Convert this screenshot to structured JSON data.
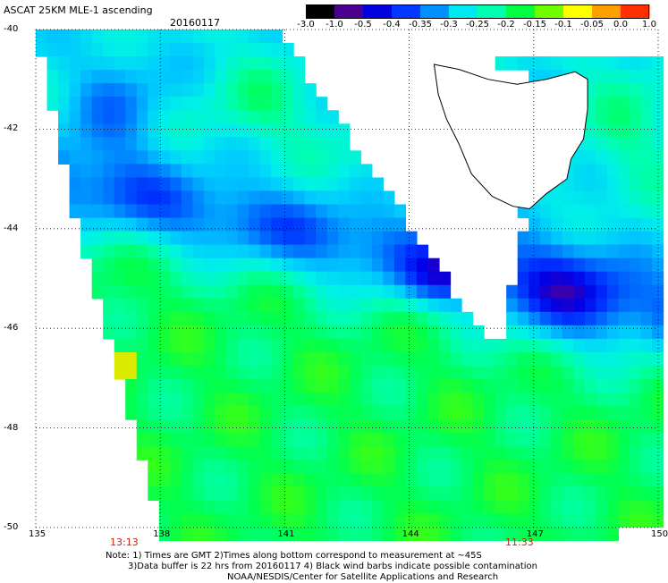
{
  "header": {
    "title": "ASCAT 25KM MLE-1 ascending",
    "date": "20160117"
  },
  "colorbar": {
    "labels": [
      "-3.0",
      "-1.0",
      "-0.5",
      "-0.4",
      "-0.35",
      "-0.3",
      "-0.25",
      "-0.2",
      "-0.15",
      "-0.1",
      "-0.05",
      "0.0",
      "1.0"
    ],
    "colors": [
      "#000000",
      "#4b0090",
      "#0000e0",
      "#0038ff",
      "#0090ff",
      "#00e8f0",
      "#00ffb0",
      "#00ff40",
      "#70ff00",
      "#ffff00",
      "#ffa000",
      "#ff3000"
    ]
  },
  "map": {
    "lat_labels": [
      "-40",
      "-42",
      "-44",
      "-46",
      "-48",
      "-50"
    ],
    "lon_labels": [
      "135",
      "138",
      "141",
      "144",
      "147",
      "150"
    ],
    "lat_range": [
      -50,
      -40
    ],
    "lon_range": [
      135,
      150
    ],
    "gridlines": true,
    "region": "Tasmania / Southern Ocean"
  },
  "times": {
    "left": "13:13",
    "right": "11:33"
  },
  "notes": {
    "line1": "Note: 1) Times are GMT 2)Times along bottom correspond to measurement at ~45S",
    "line2": "3)Data buffer is 22 hrs from 20160117 4) Black wind barbs indicate possible contamination",
    "line3": "NOAA/NESDIS/Center for Satellite Applications and Research"
  }
}
